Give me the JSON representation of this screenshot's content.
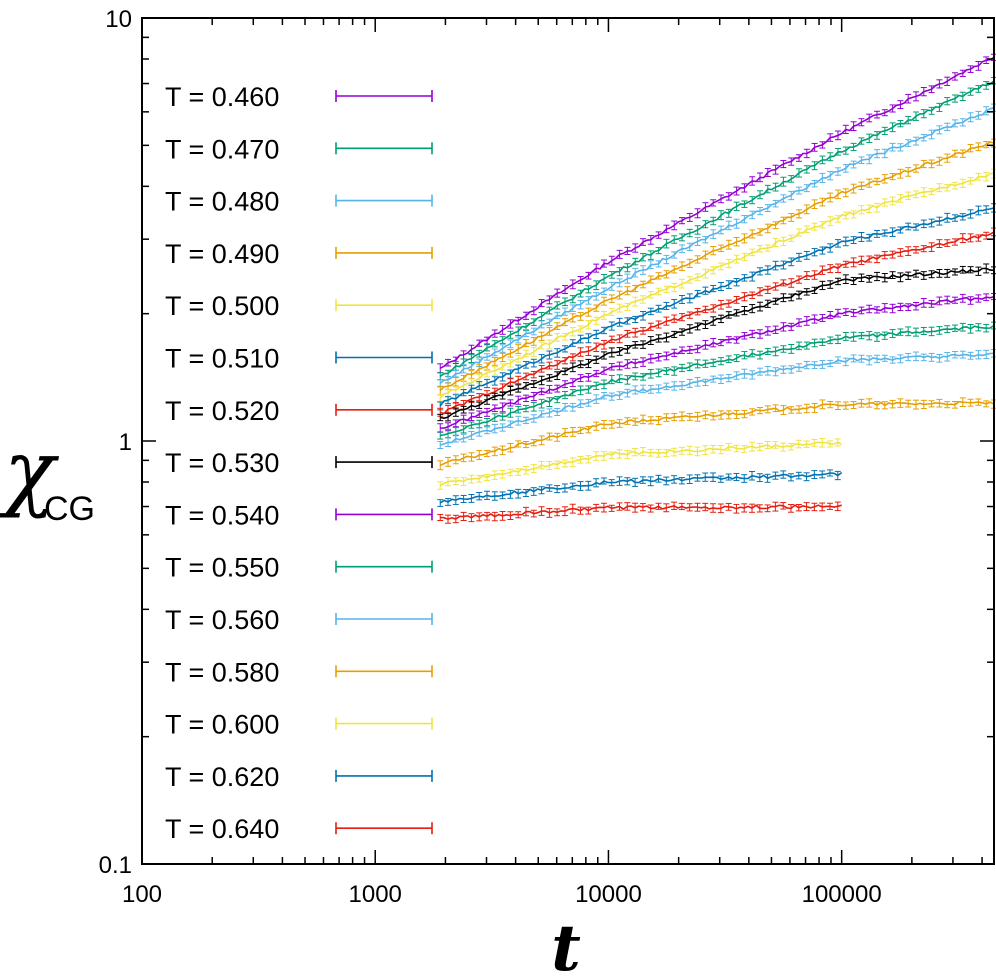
{
  "chart_data": {
    "type": "line",
    "title": "",
    "xlabel": "t",
    "ylabel_main": "χ",
    "ylabel_sub": "CG",
    "xscale": "log",
    "yscale": "log",
    "xlim": [
      100,
      450000
    ],
    "ylim": [
      0.1,
      10
    ],
    "x_ticks": [
      {
        "value": 100,
        "label": "100"
      },
      {
        "value": 1000,
        "label": "1000"
      },
      {
        "value": 10000,
        "label": "10000"
      },
      {
        "value": 100000,
        "label": "100000"
      }
    ],
    "y_ticks": [
      {
        "value": 0.1,
        "label": "0.1"
      },
      {
        "value": 1,
        "label": "1"
      },
      {
        "value": 10,
        "label": "10"
      }
    ],
    "grid": false,
    "legend_position": "left",
    "error_bars": true,
    "series": [
      {
        "name": "T = 0.460",
        "color": "#9400d3",
        "x": [
          1900,
          10000,
          100000,
          450000
        ],
        "y": [
          1.48,
          2.65,
          5.35,
          8.1
        ]
      },
      {
        "name": "T = 0.470",
        "color": "#009e73",
        "x": [
          1900,
          10000,
          100000,
          450000
        ],
        "y": [
          1.42,
          2.45,
          4.85,
          7.1
        ]
      },
      {
        "name": "T = 0.480",
        "color": "#56b4e9",
        "x": [
          1900,
          10000,
          100000,
          450000
        ],
        "y": [
          1.37,
          2.3,
          4.4,
          6.1
        ]
      },
      {
        "name": "T = 0.490",
        "color": "#e69f00",
        "x": [
          1900,
          10000,
          100000,
          450000
        ],
        "y": [
          1.32,
          2.15,
          3.85,
          5.1
        ]
      },
      {
        "name": "T = 0.500",
        "color": "#f0e442",
        "x": [
          1900,
          10000,
          100000,
          450000
        ],
        "y": [
          1.27,
          2.0,
          3.4,
          4.3
        ]
      },
      {
        "name": "T = 0.510",
        "color": "#0072b2",
        "x": [
          1900,
          10000,
          100000,
          450000
        ],
        "y": [
          1.22,
          1.85,
          2.95,
          3.55
        ]
      },
      {
        "name": "T = 0.520",
        "color": "#e51e10",
        "x": [
          1900,
          10000,
          100000,
          450000
        ],
        "y": [
          1.16,
          1.72,
          2.6,
          3.1
        ]
      },
      {
        "name": "T = 0.530",
        "color": "#000000",
        "x": [
          1900,
          10000,
          100000,
          450000
        ],
        "y": [
          1.13,
          1.6,
          2.4,
          2.55
        ]
      },
      {
        "name": "T = 0.540",
        "color": "#9400d3",
        "x": [
          1900,
          10000,
          100000,
          450000
        ],
        "y": [
          1.07,
          1.48,
          2.0,
          2.2
        ]
      },
      {
        "name": "T = 0.550",
        "color": "#009e73",
        "x": [
          1900,
          10000,
          100000,
          450000
        ],
        "y": [
          1.03,
          1.38,
          1.75,
          1.87
        ]
      },
      {
        "name": "T = 0.560",
        "color": "#56b4e9",
        "x": [
          1900,
          10000,
          100000,
          450000
        ],
        "y": [
          0.98,
          1.28,
          1.55,
          1.6
        ]
      },
      {
        "name": "T = 0.580",
        "color": "#e69f00",
        "x": [
          1900,
          10000,
          100000,
          450000
        ],
        "y": [
          0.88,
          1.1,
          1.22,
          1.23
        ]
      },
      {
        "name": "T = 0.600",
        "color": "#f0e442",
        "x": [
          1900,
          10000,
          100000
        ],
        "y": [
          0.79,
          0.93,
          0.99
        ]
      },
      {
        "name": "T = 0.620",
        "color": "#0072b2",
        "x": [
          1900,
          10000,
          100000
        ],
        "y": [
          0.72,
          0.8,
          0.835
        ]
      },
      {
        "name": "T = 0.640",
        "color": "#e51e10",
        "x": [
          1900,
          10000,
          100000
        ],
        "y": [
          0.655,
          0.695,
          0.7
        ]
      }
    ]
  }
}
